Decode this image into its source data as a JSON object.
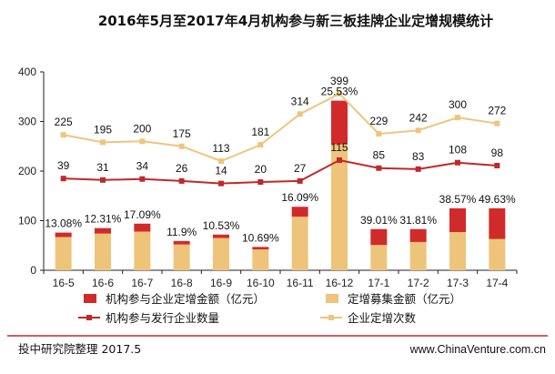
{
  "chart_data": {
    "type": "bar",
    "title": "2016年5月至2017年4月机构参与新三板挂牌企业定增规模统计",
    "categories": [
      "16-5",
      "16-6",
      "16-7",
      "16-8",
      "16-9",
      "16-10",
      "16-11",
      "16-12",
      "17-1",
      "17-2",
      "17-3",
      "17-4"
    ],
    "ylim": [
      0,
      400
    ],
    "yticks": [
      0,
      100,
      200,
      300,
      400
    ],
    "grid": false,
    "series": [
      {
        "name": "机构参与企业定增金额（亿元）",
        "kind": "bar-stacked-top",
        "color": "#d12a2a",
        "values": [
          9,
          11,
          16,
          7,
          7,
          5,
          20,
          88,
          32,
          26,
          48,
          62
        ]
      },
      {
        "name": "定增募集金额（亿元）",
        "kind": "bar-stacked-base",
        "color": "#eec47a",
        "values": [
          67,
          74,
          78,
          52,
          65,
          42,
          108,
          254,
          51,
          57,
          77,
          63
        ]
      },
      {
        "name": "机构参与发行企业数量",
        "kind": "line",
        "color": "#c0282a",
        "marker": "square",
        "values": [
          185,
          182,
          184,
          180,
          175,
          178,
          180,
          222,
          206,
          204,
          217,
          211
        ],
        "labels": [
          "39",
          "31",
          "34",
          "26",
          "14",
          "20",
          "27",
          "115",
          "85",
          "83",
          "108",
          "98"
        ]
      },
      {
        "name": "企业定增次数",
        "kind": "line",
        "color": "#f0c47c",
        "marker": "square",
        "values": [
          273,
          258,
          260,
          250,
          220,
          253,
          315,
          356,
          275,
          282,
          308,
          296
        ],
        "labels": [
          "225",
          "195",
          "200",
          "175",
          "113",
          "181",
          "314",
          "399",
          "229",
          "242",
          "300",
          "272"
        ]
      }
    ],
    "percent_labels": [
      "13.08%",
      "12.31%",
      "17.09%",
      "11.9%",
      "10.53%",
      "10.69%",
      "16.09%",
      "25.53%",
      "39.01%",
      "31.81%",
      "38.57%",
      "49.63%"
    ],
    "legend_position": "bottom"
  },
  "footer": {
    "source": "投中研究院整理 2017.5",
    "site": "www.ChinaVenture.com.cn"
  },
  "colors": {
    "accent_rule": "#c0282a"
  }
}
